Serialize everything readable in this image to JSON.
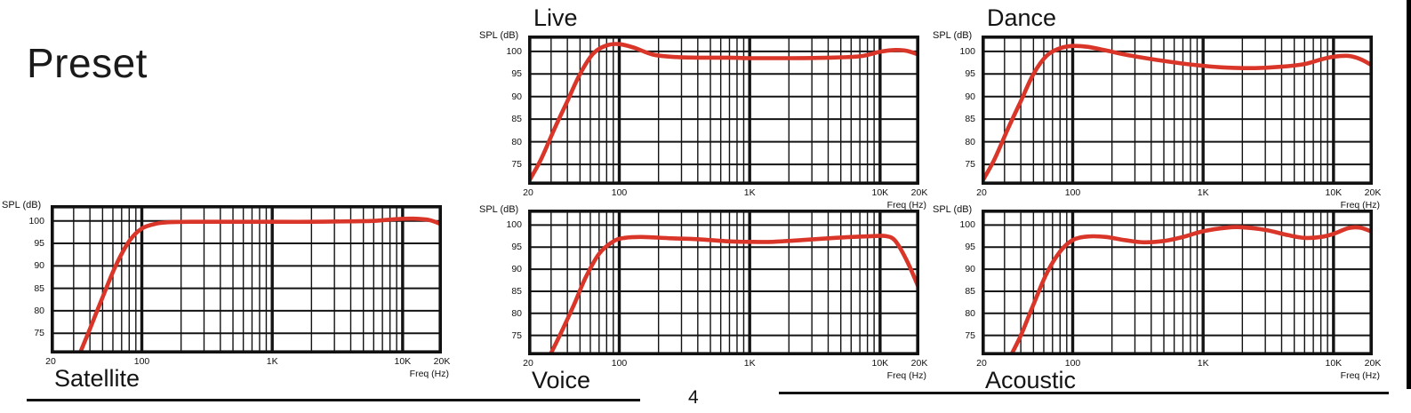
{
  "page": {
    "title": "Preset",
    "page_number": "4"
  },
  "axis": {
    "y_label": "SPL (dB)",
    "x_label": "Freq (Hz)",
    "x_min": 20,
    "x_max": 20000,
    "y_top": 103.5,
    "y_bottom": 70.5,
    "grid_minor": [
      30,
      40,
      50,
      60,
      70,
      80,
      90,
      200,
      300,
      400,
      500,
      600,
      700,
      800,
      900,
      2000,
      3000,
      4000,
      5000,
      6000,
      7000,
      8000,
      9000
    ],
    "grid_major": [
      100,
      1000,
      10000
    ],
    "x_ticks": [
      {
        "label": "20",
        "f": 20
      },
      {
        "label": "100",
        "f": 100
      },
      {
        "label": "1K",
        "f": 1000
      },
      {
        "label": "10K",
        "f": 10000
      },
      {
        "label": "20K",
        "f": 20000
      }
    ],
    "curve_color": "#d93528"
  },
  "chart_data": [
    {
      "type": "line",
      "title": "Live",
      "xlabel": "Freq (Hz)",
      "ylabel": "SPL (dB)",
      "x_scale": "log",
      "xlim": [
        20,
        20000
      ],
      "ylim": [
        70.5,
        103.5
      ],
      "y_ticks": [
        75,
        80,
        85,
        90,
        95,
        100
      ],
      "x_tick_labels": [
        "20",
        "100",
        "1K",
        "10K",
        "20K"
      ],
      "grid": true,
      "legend": false,
      "series": [
        {
          "name": "Live preset frequency response",
          "color": "#d93528",
          "points_hz_db": [
            [
              20,
              71
            ],
            [
              25,
              76
            ],
            [
              32,
              83
            ],
            [
              40,
              89
            ],
            [
              50,
              95
            ],
            [
              63,
              99.5
            ],
            [
              80,
              101.3
            ],
            [
              100,
              101.6
            ],
            [
              130,
              100.8
            ],
            [
              180,
              99.3
            ],
            [
              250,
              98.8
            ],
            [
              400,
              98.6
            ],
            [
              700,
              98.6
            ],
            [
              1000,
              98.5
            ],
            [
              2000,
              98.5
            ],
            [
              4000,
              98.6
            ],
            [
              7000,
              98.9
            ],
            [
              10000,
              99.9
            ],
            [
              13000,
              100.3
            ],
            [
              16000,
              100.1
            ],
            [
              20000,
              99.2
            ]
          ]
        }
      ]
    },
    {
      "type": "line",
      "title": "Dance",
      "xlabel": "Freq (Hz)",
      "ylabel": "SPL (dB)",
      "x_scale": "log",
      "xlim": [
        20,
        20000
      ],
      "ylim": [
        70.5,
        103.5
      ],
      "y_ticks": [
        75,
        80,
        85,
        90,
        95,
        100
      ],
      "x_tick_labels": [
        "20",
        "100",
        "1K",
        "10K",
        "20K"
      ],
      "grid": true,
      "legend": false,
      "series": [
        {
          "name": "Dance preset frequency response",
          "color": "#d93528",
          "points_hz_db": [
            [
              20,
              71
            ],
            [
              25,
              76
            ],
            [
              32,
              83
            ],
            [
              40,
              89
            ],
            [
              50,
              95
            ],
            [
              63,
              99
            ],
            [
              80,
              100.7
            ],
            [
              100,
              101.2
            ],
            [
              130,
              101
            ],
            [
              180,
              100.2
            ],
            [
              250,
              99.3
            ],
            [
              400,
              98.3
            ],
            [
              700,
              97.3
            ],
            [
              1000,
              96.8
            ],
            [
              1500,
              96.4
            ],
            [
              2500,
              96.3
            ],
            [
              4000,
              96.6
            ],
            [
              6000,
              97.2
            ],
            [
              8000,
              98.2
            ],
            [
              10000,
              98.8
            ],
            [
              13000,
              99
            ],
            [
              16000,
              98.3
            ],
            [
              20000,
              96.8
            ]
          ]
        }
      ]
    },
    {
      "type": "line",
      "title": "Satellite",
      "xlabel": "Freq (Hz)",
      "ylabel": "SPL (dB)",
      "x_scale": "log",
      "xlim": [
        20,
        20000
      ],
      "ylim": [
        70.5,
        103.5
      ],
      "y_ticks": [
        75,
        80,
        85,
        90,
        95,
        100
      ],
      "x_tick_labels": [
        "20",
        "100",
        "1K",
        "10K",
        "20K"
      ],
      "grid": true,
      "legend": false,
      "series": [
        {
          "name": "Satellite preset frequency response",
          "color": "#d93528",
          "points_hz_db": [
            [
              34,
              71
            ],
            [
              40,
              76
            ],
            [
              50,
              83
            ],
            [
              63,
              90
            ],
            [
              80,
              95.5
            ],
            [
              100,
              98.3
            ],
            [
              130,
              99.4
            ],
            [
              160,
              99.7
            ],
            [
              250,
              99.8
            ],
            [
              400,
              99.8
            ],
            [
              700,
              99.8
            ],
            [
              1000,
              99.8
            ],
            [
              2000,
              99.8
            ],
            [
              4000,
              99.9
            ],
            [
              6000,
              100
            ],
            [
              9000,
              100.4
            ],
            [
              12000,
              100.5
            ],
            [
              16000,
              100.2
            ],
            [
              20000,
              99.2
            ]
          ]
        }
      ]
    },
    {
      "type": "line",
      "title": "Voice",
      "xlabel": "Freq (Hz)",
      "ylabel": "SPL (dB)",
      "x_scale": "log",
      "xlim": [
        20,
        20000
      ],
      "ylim": [
        70.5,
        103.5
      ],
      "y_ticks": [
        75,
        80,
        85,
        90,
        95,
        100
      ],
      "x_tick_labels": [
        "20",
        "100",
        "1K",
        "10K",
        "20K"
      ],
      "grid": true,
      "legend": false,
      "series": [
        {
          "name": "Voice preset frequency response",
          "color": "#d93528",
          "points_hz_db": [
            [
              30,
              71
            ],
            [
              35,
              75
            ],
            [
              45,
              82
            ],
            [
              55,
              88
            ],
            [
              70,
              93.5
            ],
            [
              90,
              96.3
            ],
            [
              110,
              97.1
            ],
            [
              150,
              97.3
            ],
            [
              250,
              97
            ],
            [
              400,
              96.8
            ],
            [
              700,
              96.3
            ],
            [
              1000,
              96.2
            ],
            [
              1500,
              96.2
            ],
            [
              2500,
              96.6
            ],
            [
              4000,
              97
            ],
            [
              6000,
              97.3
            ],
            [
              9000,
              97.5
            ],
            [
              11000,
              97.5
            ],
            [
              13000,
              96.5
            ],
            [
              16000,
              92
            ],
            [
              20000,
              85.5
            ]
          ]
        }
      ]
    },
    {
      "type": "line",
      "title": "Acoustic",
      "xlabel": "Freq (Hz)",
      "ylabel": "SPL (dB)",
      "x_scale": "log",
      "xlim": [
        20,
        20000
      ],
      "ylim": [
        70.5,
        103.5
      ],
      "y_ticks": [
        75,
        80,
        85,
        90,
        95,
        100
      ],
      "x_tick_labels": [
        "20",
        "100",
        "1K",
        "10K",
        "20K"
      ],
      "grid": true,
      "legend": false,
      "series": [
        {
          "name": "Acoustic preset frequency response",
          "color": "#d93528",
          "points_hz_db": [
            [
              33,
              70
            ],
            [
              40,
              75
            ],
            [
              50,
              82
            ],
            [
              63,
              89
            ],
            [
              80,
              94
            ],
            [
              100,
              96.6
            ],
            [
              130,
              97.4
            ],
            [
              180,
              97.3
            ],
            [
              250,
              96.6
            ],
            [
              350,
              96.1
            ],
            [
              500,
              96.4
            ],
            [
              700,
              97.3
            ],
            [
              1000,
              98.6
            ],
            [
              1500,
              99.4
            ],
            [
              2000,
              99.5
            ],
            [
              3000,
              98.9
            ],
            [
              4500,
              97.7
            ],
            [
              6000,
              97.1
            ],
            [
              8000,
              97.3
            ],
            [
              10000,
              98
            ],
            [
              13000,
              99.3
            ],
            [
              16000,
              99.4
            ],
            [
              20000,
              98.4
            ]
          ]
        }
      ]
    }
  ]
}
